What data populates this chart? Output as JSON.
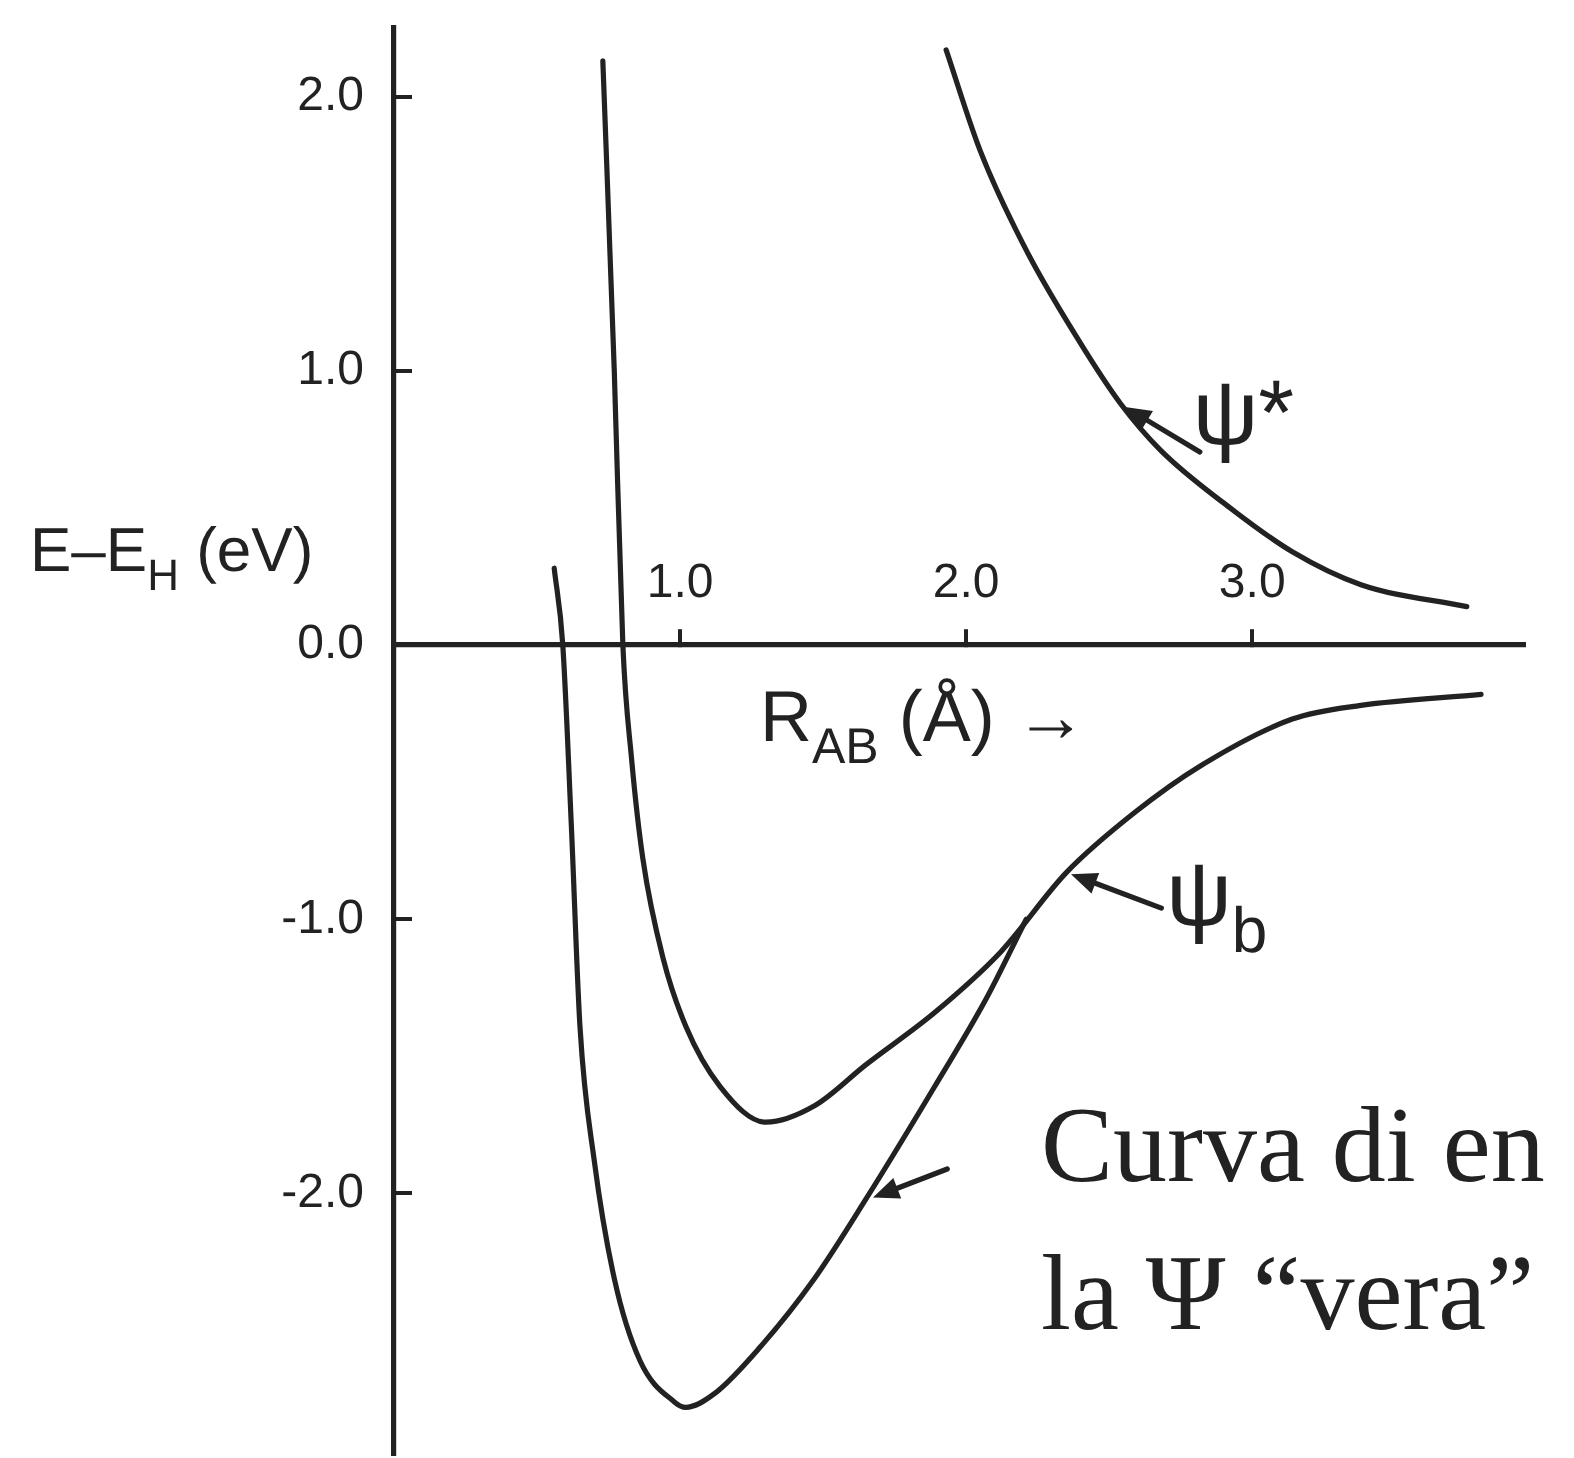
{
  "chart_data": {
    "type": "line",
    "xlabel": "R$_{AB}$ (Å) →",
    "ylabel": "E–E$_{H}$ (eV)",
    "xlim": [
      0,
      3.95
    ],
    "ylim": [
      -2.95,
      2.25
    ],
    "xticks": [
      {
        "value": 1,
        "label": "1.0"
      },
      {
        "value": 2,
        "label": "2.0"
      },
      {
        "value": 3,
        "label": "3.0"
      }
    ],
    "yticks": [
      {
        "value": 2,
        "label": "2.0"
      },
      {
        "value": 1,
        "label": "1.0"
      },
      {
        "value": 0,
        "label": "0.0"
      },
      {
        "value": -1,
        "label": "-1.0"
      },
      {
        "value": -2,
        "label": "-2.0"
      }
    ],
    "grid": false,
    "legend": "right",
    "marker": "none",
    "line_style": "solid",
    "series": [
      {
        "name": "ψ*",
        "color": "#222222",
        "x": [
          1.93,
          2.05,
          2.21,
          2.4,
          2.54,
          2.68,
          2.91,
          3.14,
          3.38,
          3.75
        ],
        "values": [
          2.17,
          1.8,
          1.44,
          1.1,
          0.88,
          0.71,
          0.51,
          0.34,
          0.22,
          0.14
        ]
      },
      {
        "name": "ψ$_{b}$",
        "color": "#222222",
        "x": [
          0.73,
          0.77,
          0.8,
          0.83,
          0.87,
          0.94,
          1.02,
          1.14,
          1.3,
          1.47,
          1.65,
          1.89,
          2.12,
          2.35,
          2.59,
          2.82,
          3.14,
          3.38,
          3.8
        ],
        "values": [
          2.13,
          1.0,
          0,
          -0.41,
          -0.78,
          -1.14,
          -1.39,
          -1.61,
          -1.74,
          -1.68,
          -1.53,
          -1.34,
          -1.12,
          -0.83,
          -0.61,
          -0.44,
          -0.27,
          -0.22,
          -0.18
        ]
      },
      {
        "color": "#222222",
        "x": [
          0.56,
          0.59,
          0.62,
          0.65,
          0.7,
          0.77,
          0.86,
          0.98,
          1.02,
          1.12,
          1.28,
          1.47,
          1.65,
          1.89,
          2.07,
          2.21
        ],
        "values": [
          0.28,
          0,
          -0.66,
          -1.39,
          -1.88,
          -2.31,
          -2.61,
          -2.76,
          -2.78,
          -2.73,
          -2.56,
          -2.31,
          -2.02,
          -1.61,
          -1.29,
          -1.0
        ]
      }
    ],
    "annotations": [
      {
        "text": "Curva di en\nla Ψ “vera”",
        "x": 1.66,
        "y": -2.02
      }
    ]
  }
}
